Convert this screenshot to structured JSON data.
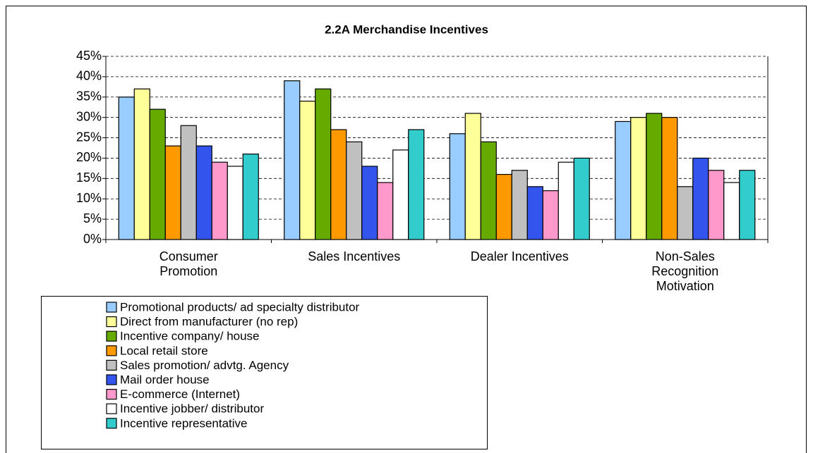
{
  "chart_data": {
    "type": "bar",
    "title": "2.2A Merchandise Incentives",
    "categories": [
      "Consumer Promotion",
      "Sales Incentives",
      "Dealer Incentives",
      "Non-Sales Recognition Motivation"
    ],
    "series": [
      {
        "name": "Promotional products/ ad specialty distributor",
        "color": "#99ccff",
        "values": [
          35,
          39,
          26,
          29
        ]
      },
      {
        "name": "Direct from manufacturer (no rep)",
        "color": "#ffff99",
        "values": [
          37,
          34,
          31,
          30
        ]
      },
      {
        "name": "Incentive company/ house",
        "color": "#66aa00",
        "values": [
          32,
          37,
          24,
          31
        ]
      },
      {
        "name": "Local retail store",
        "color": "#ff9900",
        "values": [
          23,
          27,
          16,
          30
        ]
      },
      {
        "name": "Sales promotion/ advtg. Agency",
        "color": "#c0c0c0",
        "values": [
          28,
          24,
          17,
          13
        ]
      },
      {
        "name": "Mail order house",
        "color": "#3355ee",
        "values": [
          23,
          18,
          13,
          20
        ]
      },
      {
        "name": "E-commerce (Internet)",
        "color": "#ff99cc",
        "values": [
          19,
          14,
          12,
          17
        ]
      },
      {
        "name": "Incentive jobber/ distributor",
        "color": "#ffffff",
        "values": [
          18,
          22,
          19,
          14
        ]
      },
      {
        "name": "Incentive representative",
        "color": "#33cccc",
        "values": [
          21,
          27,
          20,
          17
        ]
      }
    ],
    "ylim": [
      0,
      45
    ],
    "yticks": [
      {
        "value": 0,
        "label": "0%"
      },
      {
        "value": 5,
        "label": "5%"
      },
      {
        "value": 10,
        "label": "10%"
      },
      {
        "value": 15,
        "label": "15%"
      },
      {
        "value": 20,
        "label": "20%"
      },
      {
        "value": 25,
        "label": "25%"
      },
      {
        "value": 30,
        "label": "30%"
      },
      {
        "value": 35,
        "label": "35%"
      },
      {
        "value": 40,
        "label": "40%"
      },
      {
        "value": 45,
        "label": "45%"
      }
    ],
    "grid": true,
    "legend": "bottom-left"
  }
}
